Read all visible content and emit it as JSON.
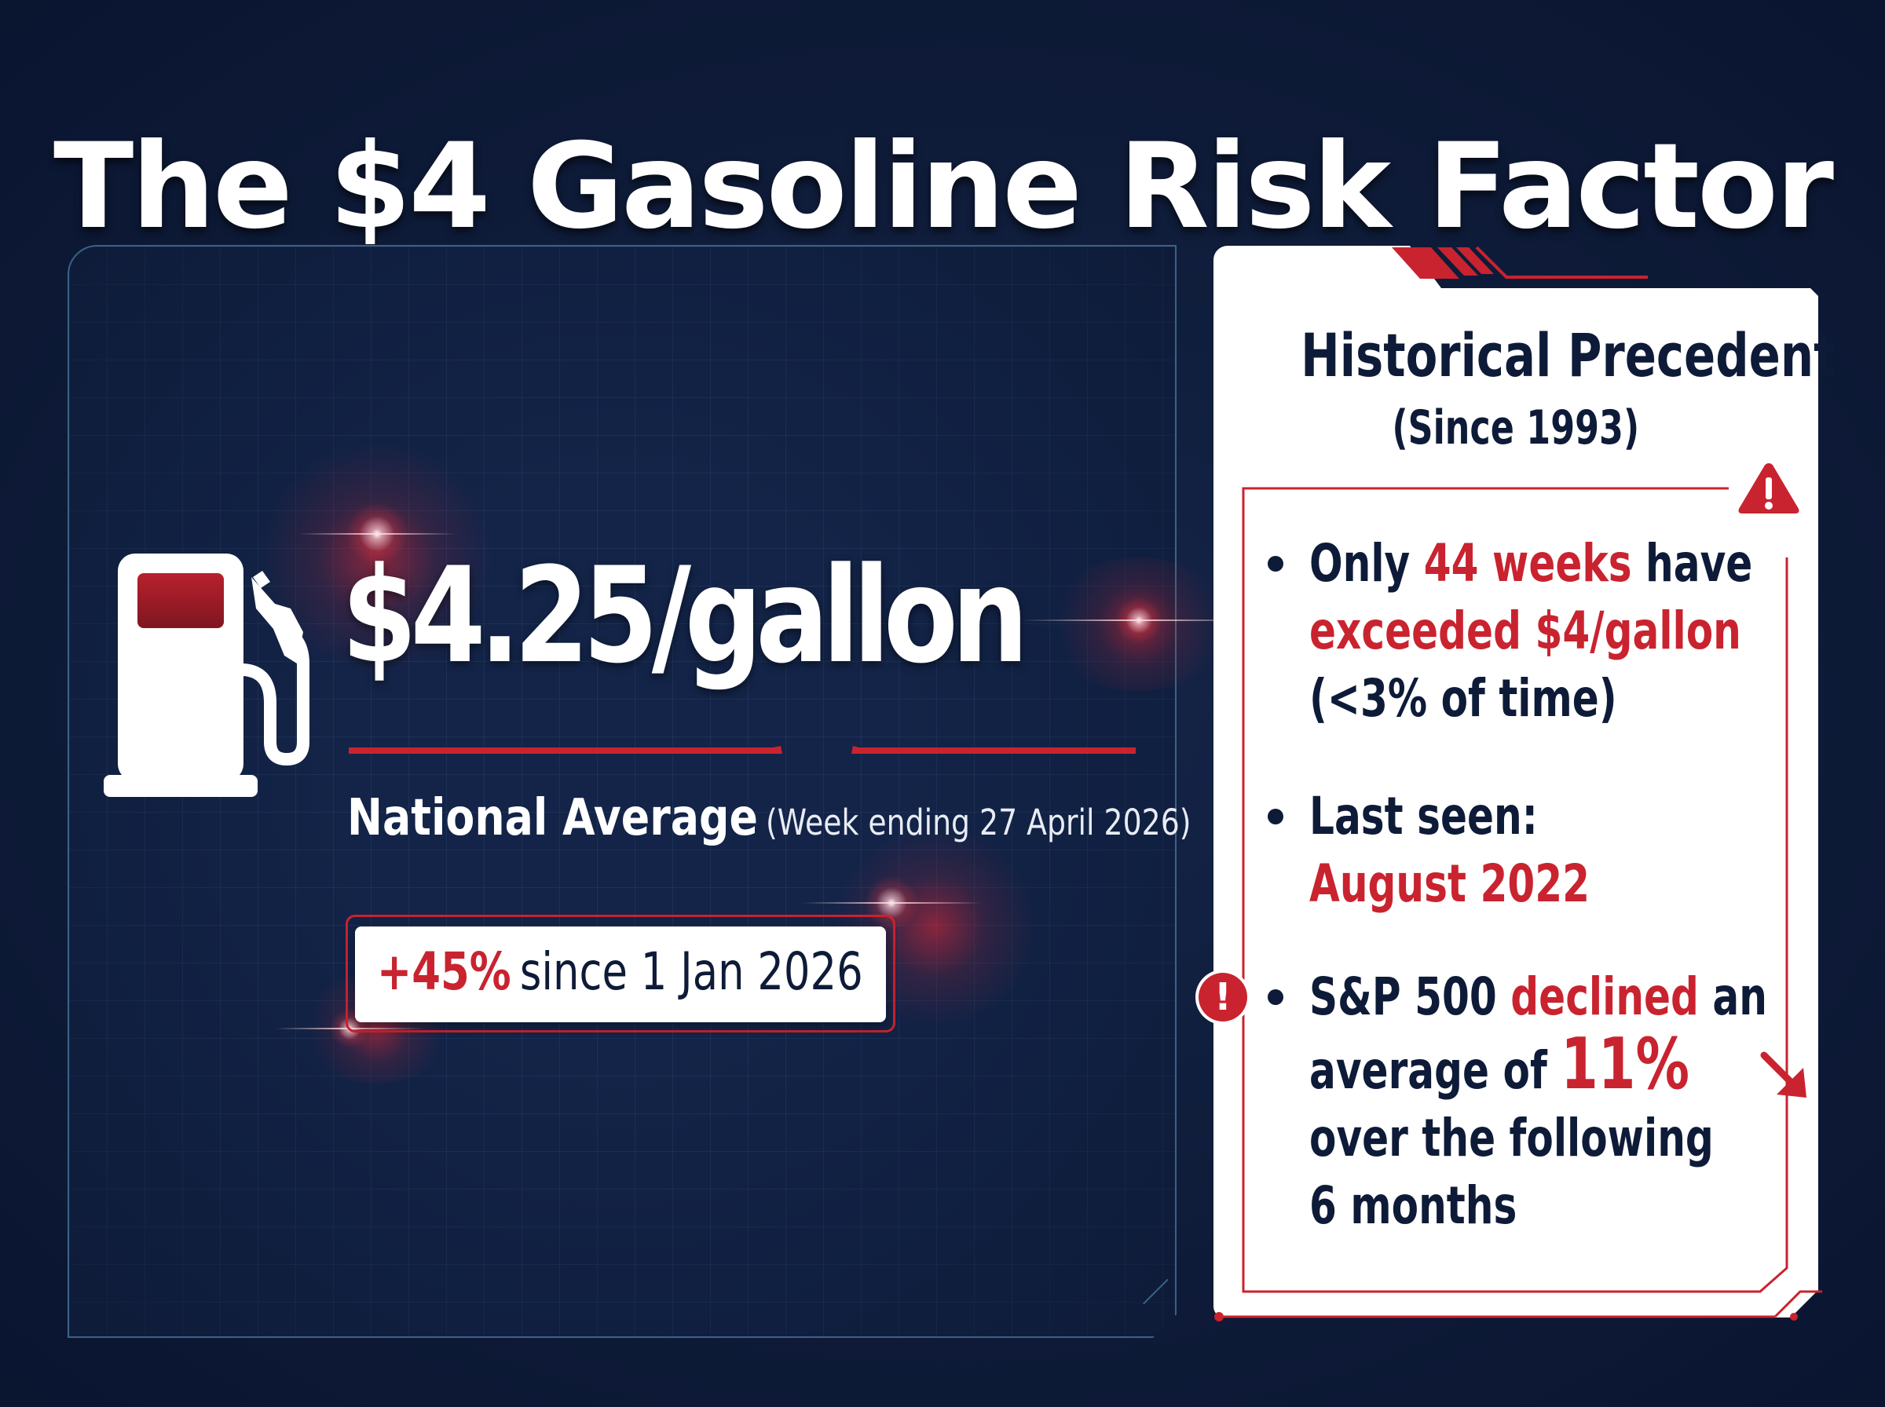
{
  "title": "The $4 Gasoline Risk Factor",
  "price": {
    "value": "$4.25/gallon",
    "label": "National Average",
    "period": "(Week ending 27 April 2026)",
    "change_pct": "+45%",
    "change_since": "since 1 Jan 2026",
    "pump_icon": "fuel-pump-icon"
  },
  "precedent": {
    "title": "Historical Precedent",
    "subtitle": "(Since 1993)",
    "warning_icon": "warning-triangle-icon",
    "alert_icon": "exclamation-circle-icon",
    "bullets": [
      {
        "line1_a": "Only",
        "line1_b": "44 weeks",
        "line1_c": "have",
        "line2": "exceeded $4/gallon",
        "line3": "(<3% of time)"
      },
      {
        "line1": "Last seen:",
        "line2": "August 2022"
      },
      {
        "line1_a": "S&P 500",
        "line1_b": "declined",
        "line1_c": "an",
        "line2_a": "average of",
        "line2_b": "11%",
        "line3": "over the following",
        "line4": "6 months",
        "arrow_icon": "down-right-arrow-icon"
      }
    ]
  },
  "colors": {
    "background": "#0e1b38",
    "accent_red": "#c9232f",
    "panel_border": "#3b6286",
    "white": "#ffffff"
  }
}
